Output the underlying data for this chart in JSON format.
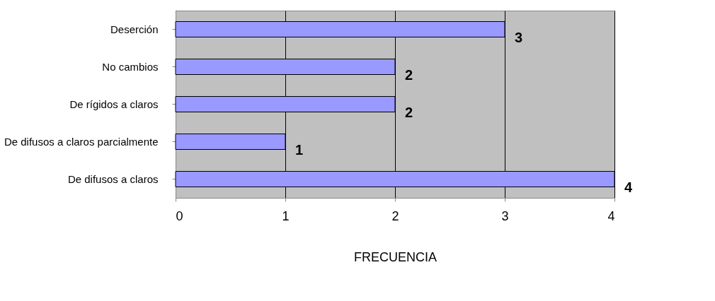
{
  "chart_data": {
    "type": "bar",
    "orientation": "horizontal",
    "xlabel": "FRECUENCIA",
    "categories": [
      "Deserción",
      "No cambios",
      "De rígidos a claros",
      "De difusos a claros parcialmente",
      "De difusos a claros"
    ],
    "values": [
      3,
      2,
      2,
      1,
      4
    ],
    "color": "#9999ff",
    "xlim": [
      0,
      4
    ],
    "xticks": [
      0,
      1,
      2,
      3,
      4
    ],
    "grid": "x",
    "data_labels": true
  }
}
